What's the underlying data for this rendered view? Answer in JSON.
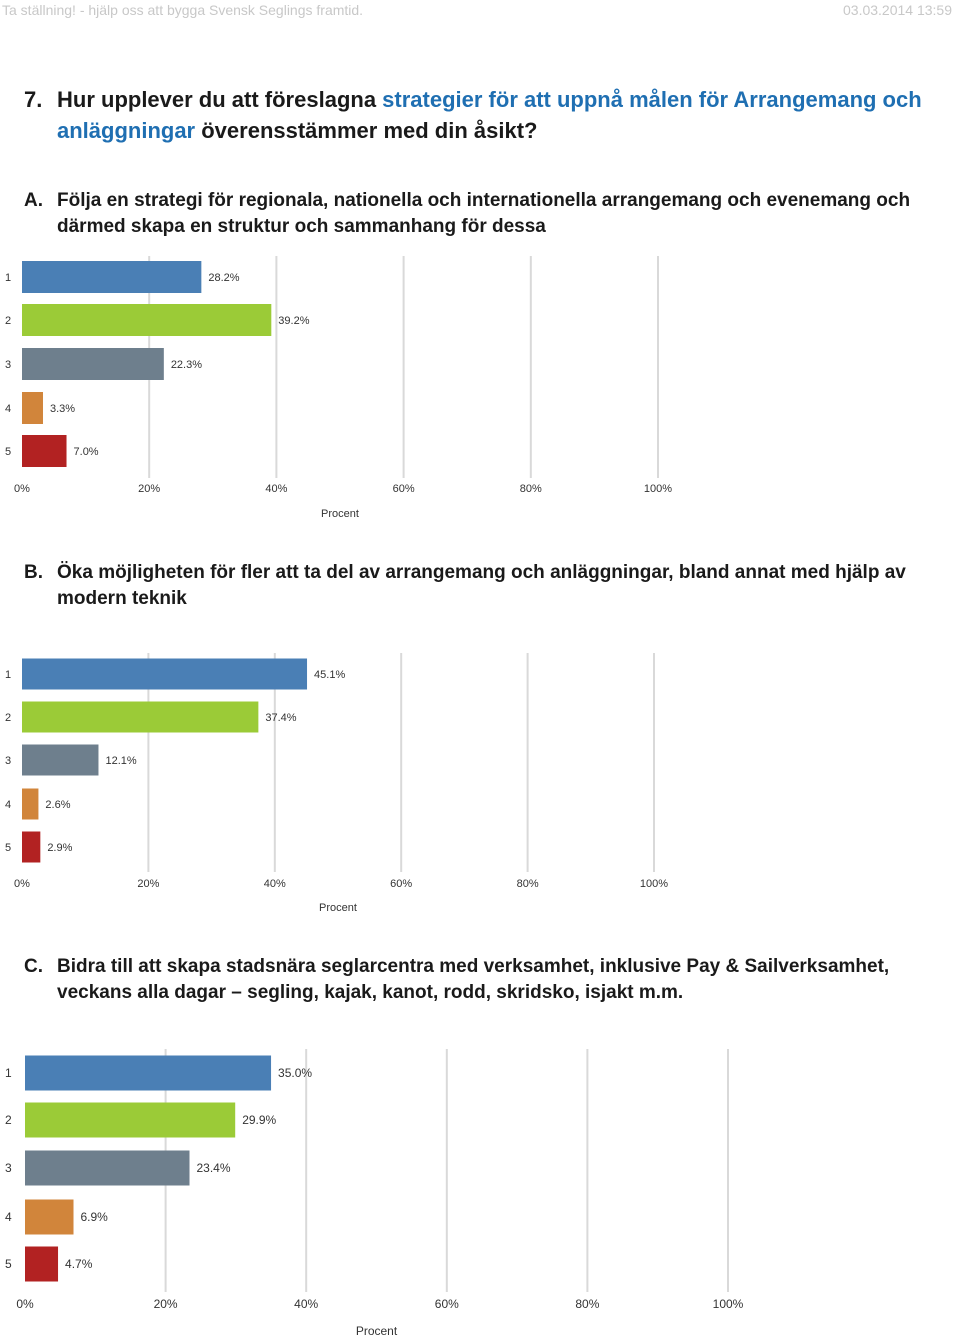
{
  "header": {
    "left_text": "Ta ställning! - hjälp oss att bygga Svensk Seglings framtid.",
    "right_text": "03.03.2014 13:59"
  },
  "question": {
    "number": "7.",
    "text_before": "Hur upplever du att föreslagna ",
    "highlight": "strategier för att uppnå målen för Arrangemang och anläggningar",
    "text_after": " överensstämmer med din åsikt?"
  },
  "colors": {
    "highlight": "#1f6fb2",
    "bars": [
      "#4a7fb5",
      "#9bcb37",
      "#6e7f8d",
      "#d1853b",
      "#b22222"
    ],
    "grid": "#d9d9d9"
  },
  "sections": [
    {
      "letter": "A.",
      "title": "Följa en strategi för regionala, nationella och internationella arrangemang och evenemang och därmed skapa en struktur och sammanhang för dessa"
    },
    {
      "letter": "B.",
      "title": "Öka möjligheten för fler att ta del av arrangemang och anläggningar, bland annat med hjälp av modern teknik"
    },
    {
      "letter": "C.",
      "title": "Bidra till att skapa stadsnära seglarcentra med verksamhet, inklusive Pay & Sailverksamhet, veckans alla dagar – segling, kajak, kanot, rodd, skridsko, isjakt m.m."
    }
  ],
  "chart_data": [
    {
      "type": "bar",
      "orientation": "horizontal",
      "categories": [
        "1",
        "2",
        "3",
        "4",
        "5"
      ],
      "values": [
        28.2,
        39.2,
        22.3,
        3.3,
        7.0
      ],
      "value_labels": [
        "28.2%",
        "39.2%",
        "22.3%",
        "3.3%",
        "7.0%"
      ],
      "xlabel": "Procent",
      "xlim": [
        0,
        100
      ],
      "xticks": [
        "0%",
        "20%",
        "40%",
        "60%",
        "80%",
        "100%"
      ],
      "grid": true
    },
    {
      "type": "bar",
      "orientation": "horizontal",
      "categories": [
        "1",
        "2",
        "3",
        "4",
        "5"
      ],
      "values": [
        45.1,
        37.4,
        12.1,
        2.6,
        2.9
      ],
      "value_labels": [
        "45.1%",
        "37.4%",
        "12.1%",
        "2.6%",
        "2.9%"
      ],
      "xlabel": "Procent",
      "xlim": [
        0,
        100
      ],
      "xticks": [
        "0%",
        "20%",
        "40%",
        "60%",
        "80%",
        "100%"
      ],
      "grid": true
    },
    {
      "type": "bar",
      "orientation": "horizontal",
      "categories": [
        "1",
        "2",
        "3",
        "4",
        "5"
      ],
      "values": [
        35.0,
        29.9,
        23.4,
        6.9,
        4.7
      ],
      "value_labels": [
        "35.0%",
        "29.9%",
        "23.4%",
        "6.9%",
        "4.7%"
      ],
      "xlabel": "Procent",
      "xlim": [
        0,
        100
      ],
      "xticks": [
        "0%",
        "20%",
        "40%",
        "60%",
        "80%",
        "100%"
      ],
      "grid": true
    }
  ]
}
